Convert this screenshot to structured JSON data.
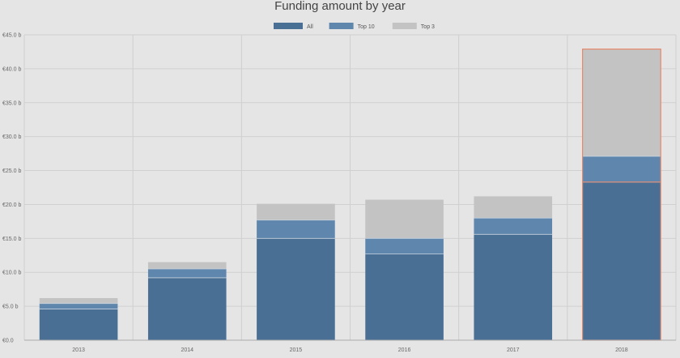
{
  "chart_data": {
    "type": "bar",
    "stacked": true,
    "title": "Funding amount by year",
    "xlabel": "",
    "ylabel": "",
    "categories": [
      "2013",
      "2014",
      "2015",
      "2016",
      "2017",
      "2018"
    ],
    "series": [
      {
        "name": "All",
        "values": [
          4.6,
          9.2,
          15.0,
          12.7,
          15.6,
          23.3
        ],
        "color": "#4a6f94"
      },
      {
        "name": "Top 10",
        "values": [
          0.8,
          1.3,
          2.7,
          2.3,
          2.4,
          3.8
        ],
        "color": "#5f86ac"
      },
      {
        "name": "Top 3",
        "values": [
          0.8,
          1.0,
          2.4,
          5.7,
          3.2,
          15.8
        ],
        "color": "#c3c3c3"
      }
    ],
    "yticks": [
      "€0.0",
      "€5.0 b",
      "€10.0 b",
      "€15.0 b",
      "€20.0 b",
      "€25.0 b",
      "€30.0 b",
      "€35.0 b",
      "€40.0 b",
      "€45.0 b"
    ],
    "ylim": [
      0,
      45
    ],
    "grid": true,
    "legend_position": "top-center",
    "highlighted_category": "2018",
    "highlight_color": "#e8876a"
  }
}
